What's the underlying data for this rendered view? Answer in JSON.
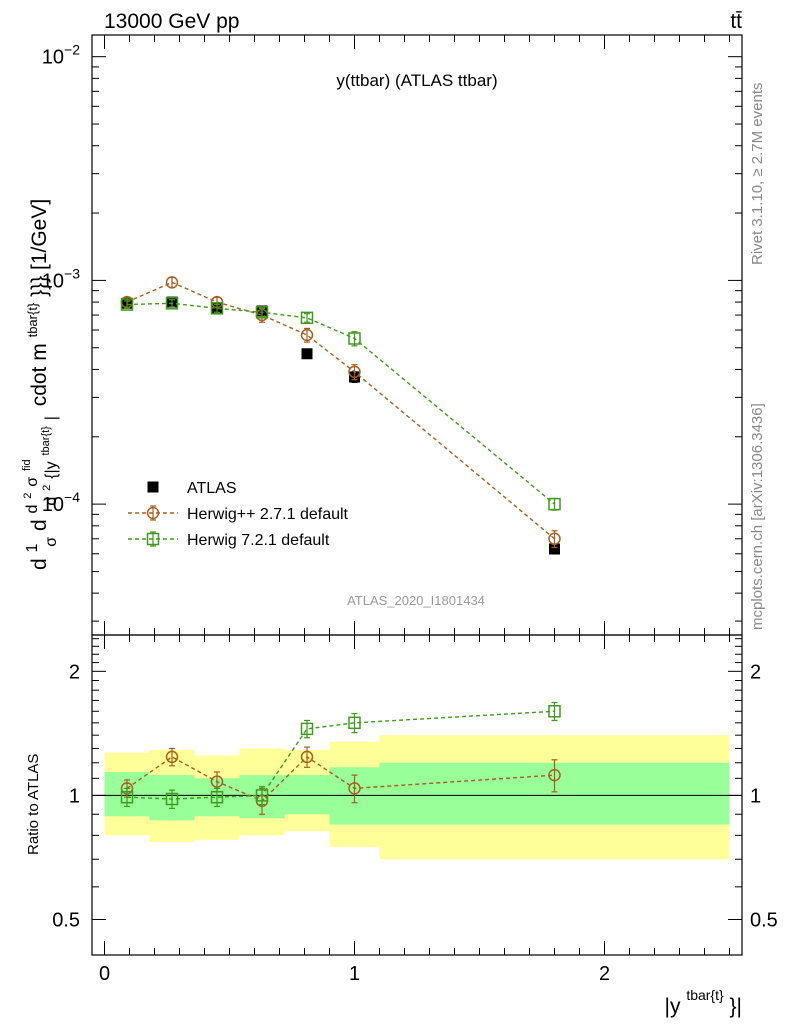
{
  "header": {
    "left": "13000 GeV pp",
    "right": "tt̄"
  },
  "side_labels": {
    "rivet": "Rivet 3.1.10, ≥ 2.7M events",
    "mcplots": "mcplots.cern.ch [arXiv:1306.3436]"
  },
  "chart_data": [
    {
      "type": "scatter",
      "title": "y(ttbar) (ATLAS ttbar)",
      "watermark": "ATLAS_2020_I1801434",
      "ylabel": "d1/σ d²σ^fid / d² {|y^tbar{t}| cdot m^tbar{t}}} [1/GeV]",
      "ylabel_parts": {
        "a": "d",
        "frac1_num": "1",
        "frac1_den": "σ",
        "b": "d",
        "frac2_num": "d",
        "frac2_num_sup": "2",
        "frac2_num_b": "σ",
        "frac2_num_sup2": "fid",
        "frac2_den": "d",
        "frac2_den_sup": "2",
        "frac2_den_b": "{|y",
        "frac2_den_sup2": "tbar{t}",
        "frac2_den_c": "|",
        "rest": "cdot m",
        "rest_sup": "tbar{t}",
        "rest_b": "}}} [1/GeV]"
      },
      "yscale": "log",
      "ylim": [
        2.6e-05,
        0.0125
      ],
      "xlim": [
        -0.05,
        2.55
      ],
      "y_tick_labels": [
        {
          "value": 0.01,
          "base": "10",
          "exp": "−2"
        },
        {
          "value": 0.001,
          "base": "10",
          "exp": "−3"
        },
        {
          "value": 0.0001,
          "base": "10",
          "exp": "−4"
        }
      ],
      "series": [
        {
          "name": "ATLAS",
          "color": "#000000",
          "marker": "filled-square",
          "x": [
            0.09,
            0.27,
            0.45,
            0.63,
            0.81,
            1.0,
            1.8
          ],
          "y": [
            0.00079,
            0.0008,
            0.00075,
            0.00073,
            0.00047,
            0.00037,
            6.3e-05
          ],
          "yerr": [
            3e-05,
            3e-05,
            3e-05,
            3e-05,
            1.5e-05,
            2e-05,
            3e-06
          ]
        },
        {
          "name": "Herwig++ 2.7.1 default",
          "color": "#a65f1e",
          "marker": "open-circle",
          "x": [
            0.09,
            0.27,
            0.45,
            0.63,
            0.81,
            1.0,
            1.8
          ],
          "y": [
            0.0008,
            0.00098,
            0.0008,
            0.0007,
            0.00057,
            0.00039,
            7e-05
          ],
          "yerr": [
            4e-05,
            5e-05,
            4e-05,
            5e-05,
            4e-05,
            3e-05,
            6e-06
          ]
        },
        {
          "name": "Herwig 7.2.1 default",
          "color": "#3e9b1d",
          "marker": "open-square",
          "x": [
            0.09,
            0.27,
            0.45,
            0.63,
            0.81,
            1.0,
            1.8
          ],
          "y": [
            0.00078,
            0.00079,
            0.00075,
            0.00072,
            0.00068,
            0.00055,
            0.0001
          ],
          "yerr": [
            3e-05,
            3e-05,
            3e-05,
            3e-05,
            3e-05,
            4e-05,
            6e-06
          ]
        }
      ]
    },
    {
      "type": "scatter",
      "ylabel": "Ratio to ATLAS",
      "xlabel": "|y^tbar{t}}|",
      "xlabel_parts": {
        "a": "|y",
        "sup": "tbar{t}",
        "b": "}|"
      },
      "yscale": "log",
      "ylim": [
        0.41,
        2.45
      ],
      "xlim": [
        -0.05,
        2.55
      ],
      "y_ticks": [
        0.5,
        1,
        2
      ],
      "y_tick_labels": [
        "0.5",
        "1",
        "2"
      ],
      "x_ticks": [
        0,
        1,
        2
      ],
      "x_tick_labels": [
        "0",
        "1",
        "2"
      ],
      "bands": {
        "bin_edges": [
          0,
          0.18,
          0.36,
          0.54,
          0.72,
          0.9,
          1.1,
          2.5
        ],
        "inner_color": "#99ff99",
        "outer_color": "#ffff99",
        "inner_low": [
          0.89,
          0.87,
          0.89,
          0.88,
          0.9,
          0.85,
          0.85
        ],
        "inner_high": [
          1.14,
          1.12,
          1.1,
          1.12,
          1.12,
          1.17,
          1.2
        ],
        "outer_low": [
          0.8,
          0.77,
          0.78,
          0.8,
          0.82,
          0.75,
          0.7
        ],
        "outer_high": [
          1.27,
          1.29,
          1.25,
          1.3,
          1.29,
          1.35,
          1.4
        ]
      },
      "series": [
        {
          "name": "Herwig++ 2.7.1 default",
          "color": "#a65f1e",
          "marker": "open-circle",
          "x": [
            0.09,
            0.27,
            0.45,
            0.63,
            0.81,
            1.0,
            1.8
          ],
          "y": [
            1.04,
            1.24,
            1.08,
            0.97,
            1.24,
            1.04,
            1.12
          ],
          "yerr": [
            0.05,
            0.06,
            0.06,
            0.07,
            0.07,
            0.08,
            0.1
          ]
        },
        {
          "name": "Herwig 7.2.1 default",
          "color": "#3e9b1d",
          "marker": "open-square",
          "x": [
            0.09,
            0.27,
            0.45,
            0.63,
            0.81,
            1.0,
            1.8
          ],
          "y": [
            0.99,
            0.98,
            0.99,
            1.0,
            1.45,
            1.5,
            1.6
          ],
          "yerr": [
            0.05,
            0.05,
            0.05,
            0.05,
            0.07,
            0.08,
            0.08
          ]
        }
      ]
    }
  ]
}
